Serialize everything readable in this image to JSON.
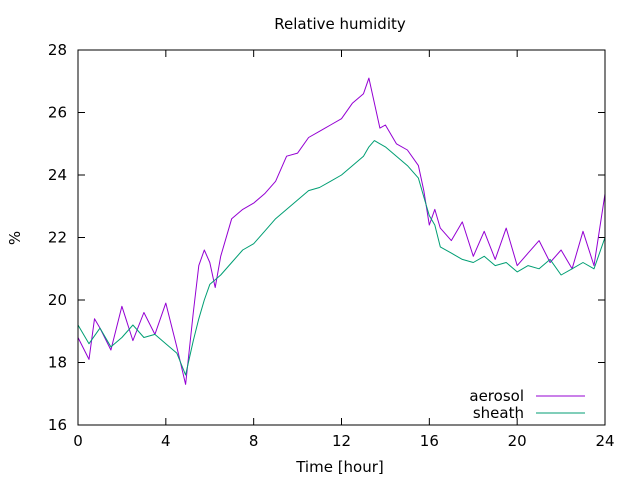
{
  "chart_data": {
    "type": "line",
    "title": "Relative humidity",
    "xlabel": "Time [hour]",
    "ylabel": "%",
    "xlim": [
      0,
      24
    ],
    "ylim": [
      16,
      28
    ],
    "xticks": [
      0,
      4,
      8,
      12,
      16,
      20,
      24
    ],
    "yticks": [
      16,
      18,
      20,
      22,
      24,
      26,
      28
    ],
    "grid": false,
    "legend_position": "bottom-right",
    "series": [
      {
        "name": "aerosol",
        "color": "#9400d3",
        "x": [
          0,
          0.5,
          0.75,
          1,
          1.5,
          2,
          2.5,
          3,
          3.5,
          4,
          4.5,
          4.9,
          5.25,
          5.5,
          5.75,
          6,
          6.25,
          6.5,
          7,
          7.5,
          8,
          8.5,
          9,
          9.5,
          10,
          10.5,
          11,
          11.5,
          12,
          12.5,
          13,
          13.25,
          13.5,
          13.75,
          14,
          14.25,
          14.5,
          15,
          15.5,
          15.75,
          16,
          16.25,
          16.5,
          17,
          17.5,
          18,
          18.5,
          19,
          19.5,
          20,
          20.5,
          21,
          21.5,
          22,
          22.5,
          23,
          23.5,
          24
        ],
        "y": [
          18.8,
          18.1,
          19.4,
          19.1,
          18.4,
          19.8,
          18.7,
          19.6,
          18.9,
          19.9,
          18.5,
          17.3,
          19.6,
          21.1,
          21.6,
          21.2,
          20.4,
          21.4,
          22.6,
          22.9,
          23.1,
          23.4,
          23.8,
          24.6,
          24.7,
          25.2,
          25.4,
          25.6,
          25.8,
          26.3,
          26.6,
          27.1,
          26.3,
          25.5,
          25.6,
          25.3,
          25.0,
          24.8,
          24.3,
          23.5,
          22.4,
          22.9,
          22.3,
          21.9,
          22.5,
          21.4,
          22.2,
          21.3,
          22.3,
          21.1,
          21.5,
          21.9,
          21.2,
          21.6,
          21.0,
          22.2,
          21.1,
          23.4
        ]
      },
      {
        "name": "sheath",
        "color": "#009e73",
        "x": [
          0,
          0.5,
          1,
          1.5,
          2,
          2.5,
          3,
          3.5,
          4,
          4.5,
          4.9,
          5.25,
          5.5,
          5.75,
          6,
          6.5,
          7,
          7.5,
          8,
          8.5,
          9,
          9.5,
          10,
          10.5,
          11,
          11.5,
          12,
          12.5,
          13,
          13.25,
          13.5,
          13.75,
          14,
          14.5,
          15,
          15.5,
          15.75,
          16,
          16.25,
          16.5,
          17,
          17.5,
          18,
          18.5,
          19,
          19.5,
          20,
          20.5,
          21,
          21.5,
          22,
          22.5,
          23,
          23.5,
          24
        ],
        "y": [
          19.2,
          18.6,
          19.1,
          18.5,
          18.8,
          19.2,
          18.8,
          18.9,
          18.6,
          18.3,
          17.6,
          18.7,
          19.4,
          20.0,
          20.5,
          20.8,
          21.2,
          21.6,
          21.8,
          22.2,
          22.6,
          22.9,
          23.2,
          23.5,
          23.6,
          23.8,
          24.0,
          24.3,
          24.6,
          24.9,
          25.1,
          25.0,
          24.9,
          24.6,
          24.3,
          23.9,
          23.3,
          22.7,
          22.4,
          21.7,
          21.5,
          21.3,
          21.2,
          21.4,
          21.1,
          21.2,
          20.9,
          21.1,
          21.0,
          21.3,
          20.8,
          21.0,
          21.2,
          21.0,
          22.0
        ]
      }
    ]
  }
}
